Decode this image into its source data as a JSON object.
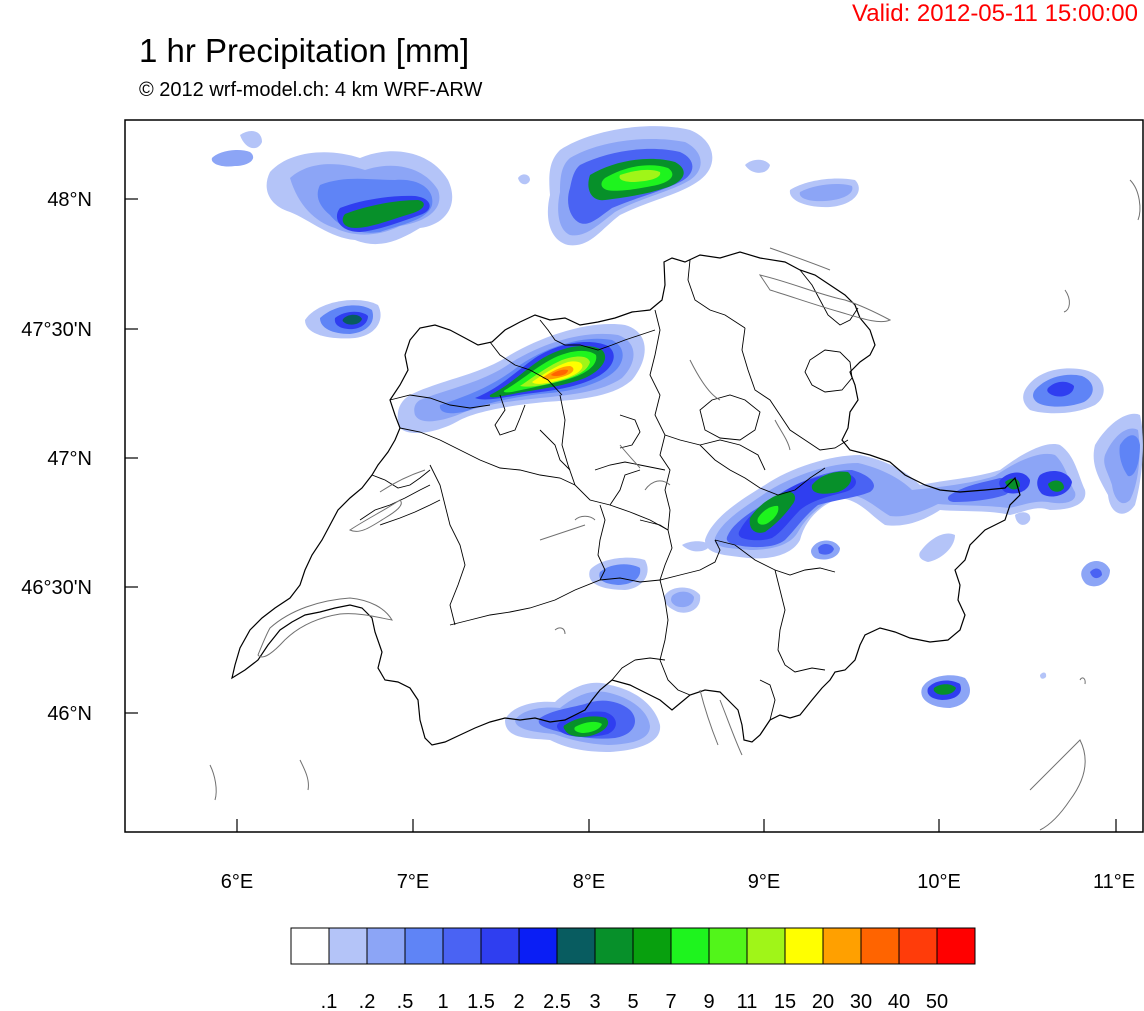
{
  "header": {
    "valid": "Valid: 2012-05-11 15:00:00",
    "title": "1 hr Precipitation [mm]",
    "subtitle": "© 2012 wrf-model.ch: 4 km WRF-ARW"
  },
  "axes": {
    "lat_labels": [
      "48°N",
      "47°30'N",
      "47°N",
      "46°30'N",
      "46°N"
    ],
    "lon_labels": [
      "6°E",
      "7°E",
      "8°E",
      "9°E",
      "10°E",
      "11°E"
    ]
  },
  "colorbar": {
    "labels": [
      ".1",
      ".2",
      ".5",
      "1",
      "1.5",
      "2",
      "2.5",
      "3",
      "5",
      "7",
      "9",
      "11",
      "15",
      "20",
      "30",
      "40",
      "50"
    ],
    "colors": [
      "#ffffff",
      "#b4c4f8",
      "#8ca5f6",
      "#5f84f6",
      "#4a63f3",
      "#2f3ef0",
      "#0a1ef5",
      "#085c60",
      "#07902a",
      "#08a00e",
      "#1ef41e",
      "#52f51a",
      "#a0f518",
      "#ffff00",
      "#ffa000",
      "#ff6400",
      "#ff3c0a",
      "#ff0000"
    ]
  }
}
